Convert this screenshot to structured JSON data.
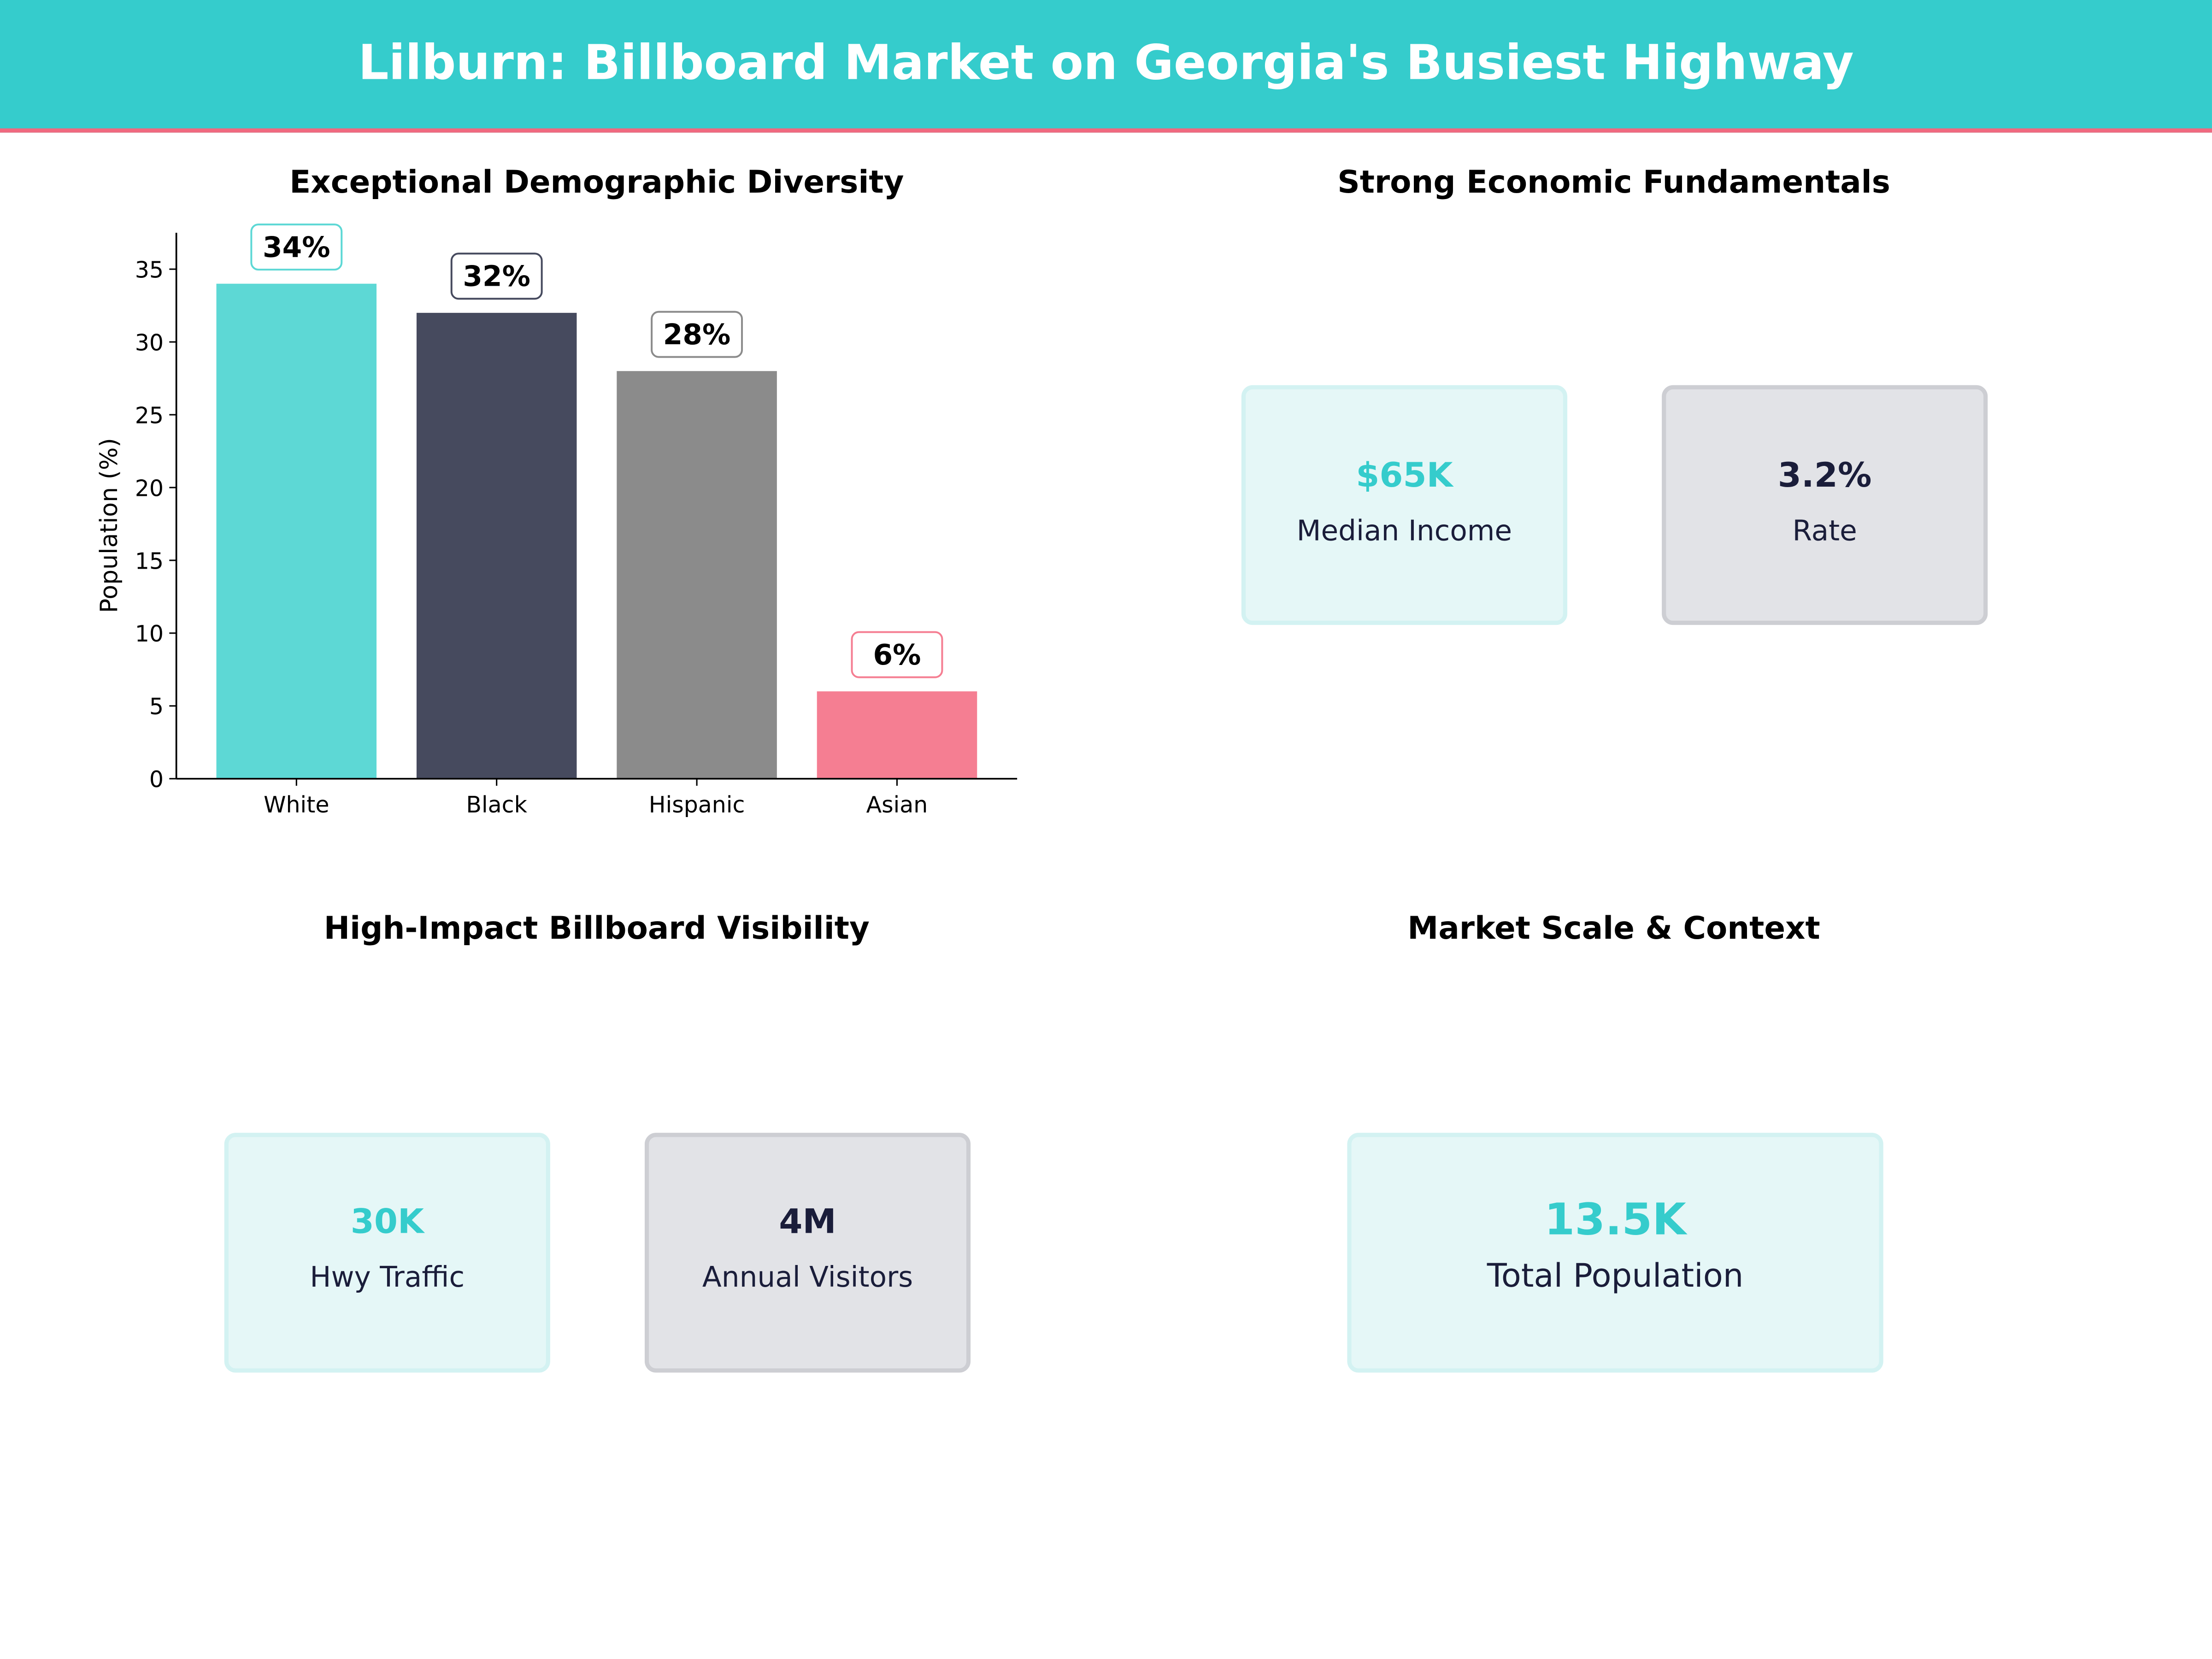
{
  "header": {
    "title": "Lilburn: Billboard Market on Georgia's Busiest Highway"
  },
  "colors": {
    "accent": "#35cccc",
    "header_border": "#f0697f",
    "dark": "#1a1d3a"
  },
  "chart_data": {
    "type": "bar",
    "title": "Exceptional Demographic Diversity",
    "xlabel": "",
    "ylabel": "Population (%)",
    "categories": [
      "White",
      "Black",
      "Hispanic",
      "Asian"
    ],
    "values": [
      34,
      32,
      28,
      6
    ],
    "data_labels": [
      "34%",
      "32%",
      "28%",
      "6%"
    ],
    "bar_colors": [
      "#5dd8d5",
      "#464a5e",
      "#8b8b8b",
      "#f57e92"
    ],
    "label_border_colors": [
      "#5dd8d5",
      "#464a5e",
      "#8b8b8b",
      "#f57e92"
    ],
    "ylim": [
      0,
      37.5
    ],
    "yticks": [
      0,
      5,
      10,
      15,
      20,
      25,
      30,
      35
    ],
    "grid": false
  },
  "economic": {
    "title": "Strong Economic Fundamentals",
    "cards": [
      {
        "value": "$65K",
        "label": "Median Income"
      },
      {
        "value": "3.2%",
        "label": "Rate"
      }
    ]
  },
  "visibility": {
    "title": "High-Impact Billboard Visibility",
    "cards": [
      {
        "value": "30K",
        "label": "Hwy Traffic"
      },
      {
        "value": "4M",
        "label": "Annual Visitors"
      }
    ]
  },
  "market": {
    "title": "Market Scale & Context",
    "cards": [
      {
        "value": "13.5K",
        "label": "Total Population"
      }
    ]
  }
}
